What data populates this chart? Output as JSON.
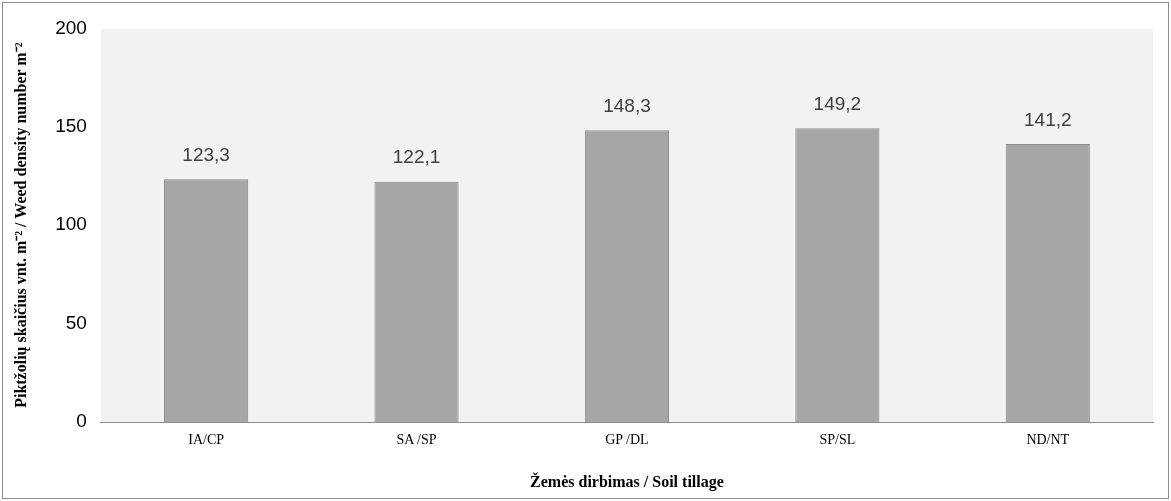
{
  "chart_data": {
    "type": "bar",
    "xlabel": "Žemės dirbimas / Soil tillage",
    "ylabel": "Piktžolių skaičius vnt. m⁻² / Weed density number m⁻²",
    "categories": [
      "IA/CP",
      "SA /SP",
      "GP /DL",
      "SP/SL",
      "ND/NT"
    ],
    "values": [
      123.3,
      122.1,
      148.3,
      149.2,
      141.2
    ],
    "value_labels": [
      "123,3",
      "122,1",
      "148,3",
      "149,2",
      "141,2"
    ],
    "color": "#a6a6a6",
    "ylim": [
      0,
      200
    ],
    "yticks": [
      0,
      50,
      100,
      150,
      200
    ],
    "grid": false,
    "legend": false
  }
}
